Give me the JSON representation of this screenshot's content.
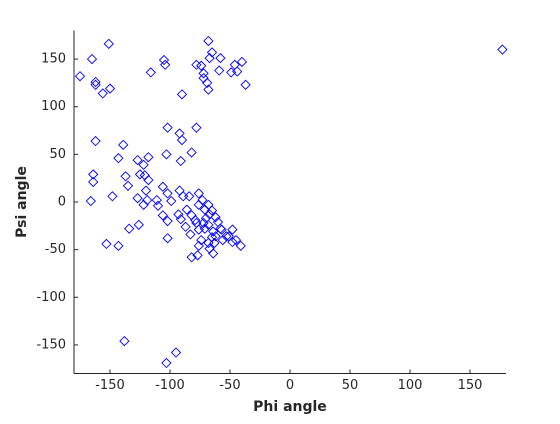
{
  "chart_data": {
    "type": "scatter",
    "xlabel": "Phi angle",
    "ylabel": "Psi angle",
    "xlim": [
      -180,
      180
    ],
    "ylim": [
      -180,
      180
    ],
    "xticks": [
      -150,
      -100,
      -50,
      0,
      50,
      100,
      150
    ],
    "yticks": [
      -150,
      -100,
      -50,
      0,
      50,
      100,
      150
    ],
    "marker": "diamond",
    "series": [
      {
        "color": "#0000ff",
        "x": [
          -175,
          -165,
          -151,
          -162,
          -162,
          -156,
          -150,
          -116,
          -105,
          -104,
          -90,
          -78,
          -74,
          -68,
          -65,
          -67,
          -72,
          -69,
          -68,
          -72,
          -58,
          -59,
          -49,
          -46,
          -44,
          -40,
          -37,
          177,
          -162,
          -139,
          -143,
          -127,
          -122,
          -118,
          -125,
          -102,
          -78,
          -92,
          -90,
          -82,
          -103,
          -91,
          -164,
          -164,
          -166,
          -137,
          -135,
          -121,
          -118,
          -120,
          -127,
          -148,
          -119,
          -122,
          -106,
          -102,
          -111,
          -110,
          -99,
          -92,
          -89,
          -84,
          -76,
          -73,
          -106,
          -102,
          -93,
          -91,
          -86,
          -82,
          -79,
          -87,
          -83,
          -76,
          -72,
          -70,
          -67,
          -68,
          -64,
          -74,
          -82,
          -77,
          -76,
          -64,
          -68,
          -62,
          -58,
          -60,
          -56,
          -57,
          -51,
          -48,
          -48,
          -45,
          -41,
          -71,
          -68,
          -65,
          -62,
          -76,
          -153,
          -143,
          -134,
          -126,
          -102,
          -138,
          -95,
          -103,
          -67,
          -63,
          -53,
          -65,
          -71,
          -78
        ],
        "values": [
          132,
          150,
          166,
          126,
          123,
          114,
          119,
          136,
          149,
          144,
          113,
          144,
          143,
          169,
          157,
          151,
          130,
          125,
          118,
          135,
          151,
          138,
          136,
          144,
          137,
          147,
          123,
          160,
          64,
          60,
          46,
          44,
          39,
          47,
          29,
          78,
          78,
          72,
          65,
          52,
          50,
          43,
          29,
          21,
          1,
          27,
          17,
          28,
          23,
          12,
          4,
          6,
          2,
          -3,
          16,
          9,
          2,
          -4,
          1,
          12,
          6,
          6,
          9,
          2,
          -14,
          -20,
          -13,
          -18,
          -8,
          -14,
          -19,
          -26,
          -34,
          -29,
          -22,
          -17,
          -13,
          -24,
          -31,
          -40,
          -58,
          -56,
          -46,
          -54,
          -43,
          -36,
          -28,
          -21,
          -40,
          -29,
          -36,
          -29,
          -42,
          -40,
          -46,
          -8,
          -3,
          -9,
          -16,
          -3,
          -44,
          -46,
          -28,
          -24,
          -38,
          -146,
          -158,
          -169,
          -49,
          -43,
          -36,
          -37,
          -28,
          -22
        ]
      }
    ]
  }
}
